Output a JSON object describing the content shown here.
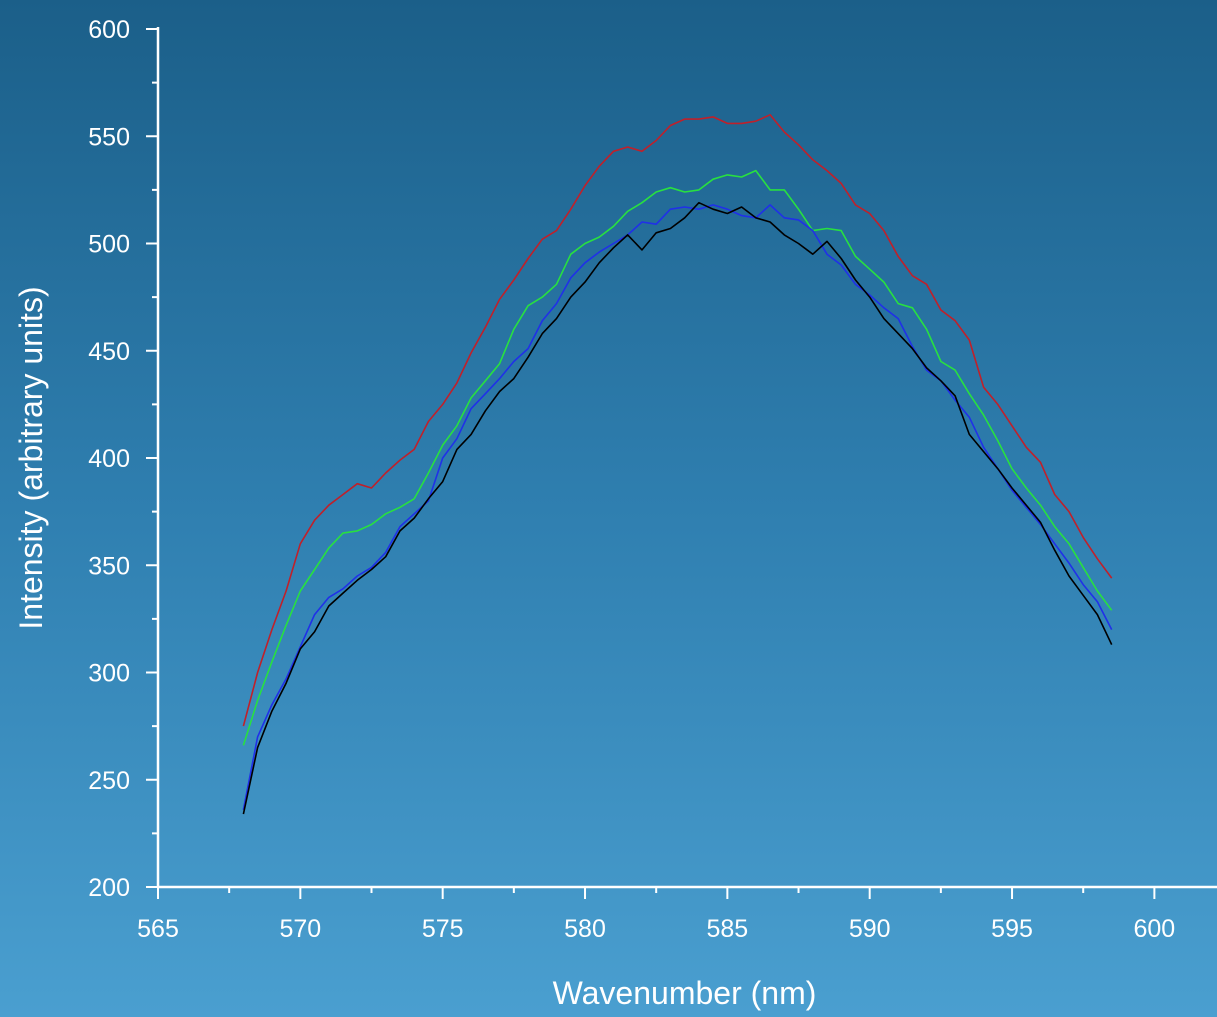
{
  "chart_data": {
    "type": "line",
    "title": "",
    "xlabel": "Wavenumber (nm)",
    "ylabel": "Intensity (arbitrary units)",
    "xlim": [
      565,
      600
    ],
    "ylim": [
      200,
      600
    ],
    "xticks": [
      565,
      570,
      575,
      580,
      585,
      590,
      595,
      600
    ],
    "yticks": [
      200,
      250,
      300,
      350,
      400,
      450,
      500,
      550,
      600
    ],
    "grid": false,
    "legend": "none",
    "x": [
      568.0,
      568.5,
      569.0,
      569.5,
      570.0,
      570.5,
      571.0,
      571.5,
      572.0,
      572.5,
      573.0,
      573.5,
      574.0,
      574.5,
      575.0,
      575.5,
      576.0,
      576.5,
      577.0,
      577.5,
      578.0,
      578.5,
      579.0,
      579.5,
      580.0,
      580.5,
      581.0,
      581.5,
      582.0,
      582.5,
      583.0,
      583.5,
      584.0,
      584.5,
      585.0,
      585.5,
      586.0,
      586.5,
      587.0,
      587.5,
      588.0,
      588.5,
      589.0,
      589.5,
      590.0,
      590.5,
      591.0,
      591.5,
      592.0,
      592.5,
      593.0,
      593.5,
      594.0,
      594.5,
      595.0,
      595.5,
      596.0,
      596.5,
      597.0,
      597.5,
      598.0,
      598.5
    ],
    "series": [
      {
        "color": "#c0202a",
        "values": [
          275,
          300,
          320,
          338,
          360,
          371,
          378,
          383,
          388,
          386,
          393,
          399,
          404,
          417,
          425,
          435,
          449,
          461,
          474,
          483,
          493,
          502,
          506,
          516,
          527,
          536,
          543,
          545,
          543,
          548,
          555,
          558,
          558,
          559,
          556,
          556,
          557,
          560,
          552,
          546,
          539,
          534,
          528,
          518,
          514,
          506,
          494,
          485,
          481,
          469,
          464,
          455,
          433,
          425,
          415,
          405,
          398,
          383,
          375,
          363,
          353,
          344
        ]
      },
      {
        "color": "#28e040",
        "values": [
          266,
          287,
          305,
          322,
          338,
          348,
          358,
          365,
          366,
          369,
          374,
          377,
          381,
          393,
          406,
          415,
          428,
          436,
          444,
          460,
          471,
          475,
          481,
          495,
          500,
          503,
          508,
          515,
          519,
          524,
          526,
          524,
          525,
          530,
          532,
          531,
          534,
          525,
          525,
          516,
          506,
          507,
          506,
          494,
          488,
          482,
          472,
          470,
          460,
          445,
          441,
          430,
          420,
          408,
          395,
          386,
          378,
          368,
          360,
          349,
          338,
          329
        ]
      },
      {
        "color": "#2030e8",
        "values": [
          236,
          270,
          285,
          297,
          312,
          327,
          335,
          339,
          345,
          349,
          356,
          368,
          374,
          380,
          400,
          409,
          423,
          430,
          437,
          445,
          451,
          464,
          472,
          484,
          491,
          496,
          500,
          504,
          510,
          509,
          516,
          517,
          516,
          518,
          516,
          513,
          512,
          518,
          512,
          511,
          506,
          495,
          490,
          481,
          476,
          470,
          465,
          452,
          441,
          436,
          427,
          419,
          405,
          395,
          385,
          377,
          369,
          360,
          351,
          341,
          333,
          320
        ]
      },
      {
        "color": "#000000",
        "values": [
          234,
          265,
          282,
          295,
          311,
          319,
          331,
          337,
          343,
          348,
          354,
          366,
          372,
          381,
          389,
          404,
          411,
          422,
          431,
          437,
          447,
          458,
          465,
          475,
          482,
          491,
          498,
          504,
          497,
          505,
          507,
          512,
          519,
          516,
          514,
          517,
          512,
          510,
          504,
          500,
          495,
          501,
          493,
          483,
          475,
          465,
          458,
          451,
          442,
          436,
          429,
          411,
          403,
          395,
          386,
          378,
          370,
          357,
          345,
          336,
          327,
          313
        ]
      }
    ]
  }
}
